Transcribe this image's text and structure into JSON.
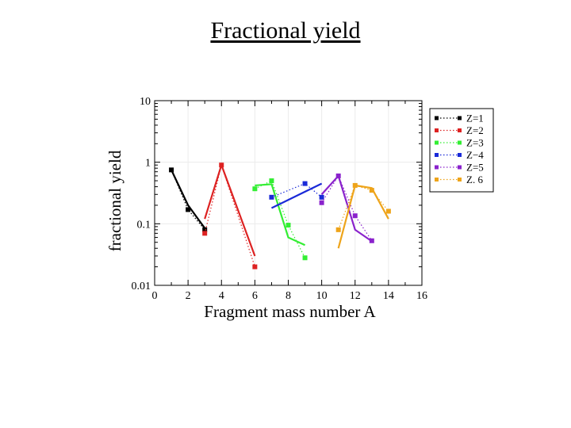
{
  "page": {
    "title": "Fractional yield"
  },
  "colors": {
    "Z=1": "#000000",
    "Z=2": "#dd2222",
    "Z=3": "#33ee33",
    "Z=4": "#1a2ad8",
    "Z=5": "#8a22cc",
    "Z=6": "#eea41a"
  },
  "chart_data": {
    "type": "line",
    "title": "",
    "xlabel": "Fragment mass number A",
    "ylabel": "fractional yield",
    "xlim": [
      0,
      16
    ],
    "ylim": [
      0.01,
      10
    ],
    "yscale": "log",
    "xticks": [
      0,
      2,
      4,
      6,
      8,
      10,
      12,
      14,
      16
    ],
    "xtick_labels": [
      "0",
      "2",
      "4",
      "6",
      "8",
      "10",
      "12",
      "14",
      "16"
    ],
    "yticks": [
      0.01,
      0.1,
      1,
      10
    ],
    "ytick_labels": [
      "0.01",
      "0.1",
      "1",
      "10"
    ],
    "legend_position": "right",
    "series": [
      {
        "name": "Z=1",
        "legend_label": "Z=1",
        "color": "#000000",
        "points": [
          [
            1,
            0.75
          ],
          [
            2,
            0.17
          ],
          [
            3,
            0.08
          ]
        ],
        "fit": [
          [
            1,
            0.75
          ],
          [
            2,
            0.2
          ],
          [
            3,
            0.085
          ]
        ]
      },
      {
        "name": "Z=2",
        "legend_label": "Z=2",
        "color": "#dd2222",
        "points": [
          [
            3,
            0.07
          ],
          [
            4,
            0.9
          ],
          [
            6,
            0.02
          ]
        ],
        "fit": [
          [
            3,
            0.12
          ],
          [
            4,
            0.9
          ],
          [
            6,
            0.03
          ]
        ]
      },
      {
        "name": "Z=3",
        "legend_label": "Z=3",
        "color": "#33ee33",
        "points": [
          [
            6,
            0.37
          ],
          [
            7,
            0.5
          ],
          [
            8,
            0.095
          ],
          [
            9,
            0.028
          ]
        ],
        "fit": [
          [
            6,
            0.42
          ],
          [
            7,
            0.44
          ],
          [
            8,
            0.06
          ],
          [
            9,
            0.045
          ]
        ]
      },
      {
        "name": "Z=4",
        "legend_label": "Z−4",
        "color": "#1a2ad8",
        "points": [
          [
            7,
            0.27
          ],
          [
            9,
            0.45
          ],
          [
            10,
            0.27
          ]
        ],
        "fit": [
          [
            7,
            0.18
          ],
          [
            10,
            0.45
          ]
        ]
      },
      {
        "name": "Z=5",
        "legend_label": "Z=5",
        "color": "#8a22cc",
        "points": [
          [
            10,
            0.22
          ],
          [
            11,
            0.6
          ],
          [
            12,
            0.135
          ],
          [
            13,
            0.053
          ]
        ],
        "fit": [
          [
            10,
            0.3
          ],
          [
            11,
            0.6
          ],
          [
            12,
            0.08
          ],
          [
            13,
            0.052
          ]
        ]
      },
      {
        "name": "Z=6",
        "legend_label": "Z. 6",
        "color": "#eea41a",
        "points": [
          [
            11,
            0.08
          ],
          [
            12,
            0.42
          ],
          [
            13,
            0.35
          ],
          [
            14,
            0.16
          ]
        ],
        "fit": [
          [
            11,
            0.04
          ],
          [
            12,
            0.42
          ],
          [
            13,
            0.38
          ],
          [
            14,
            0.12
          ]
        ]
      }
    ]
  }
}
